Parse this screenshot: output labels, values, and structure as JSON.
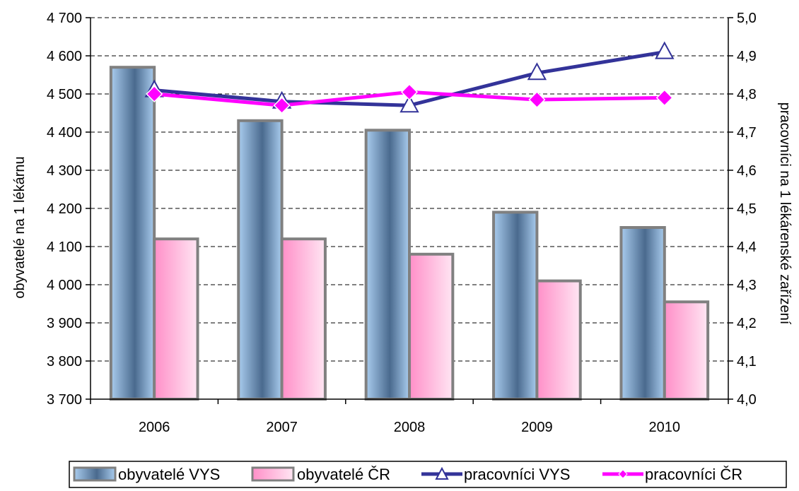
{
  "chart_data": {
    "type": "bar",
    "categories": [
      "2006",
      "2007",
      "2008",
      "2009",
      "2010"
    ],
    "series": [
      {
        "name": "obyvatelé VYS",
        "type": "bar",
        "axis": "left",
        "values": [
          4570,
          4430,
          4405,
          4190,
          4150
        ]
      },
      {
        "name": "obyvatelé ČR",
        "type": "bar",
        "axis": "left",
        "values": [
          4120,
          4120,
          4080,
          4010,
          3955
        ]
      },
      {
        "name": "pracovníci VYS",
        "type": "line",
        "axis": "right",
        "marker": "triangle",
        "values": [
          4.81,
          4.78,
          4.77,
          4.855,
          4.91
        ]
      },
      {
        "name": "pracovníci ČR",
        "type": "line",
        "axis": "right",
        "marker": "diamond",
        "values": [
          4.8,
          4.77,
          4.805,
          4.785,
          4.79
        ]
      }
    ],
    "ylabel": "obyvatelé na 1 lékárnu",
    "y2label": "pracovníci na 1 lékárenské zařízení",
    "ylim": [
      3700,
      4700
    ],
    "y2lim": [
      4.0,
      5.0
    ],
    "yticks": [
      "3 700",
      "3 800",
      "3 900",
      "4 000",
      "4 100",
      "4 200",
      "4 300",
      "4 400",
      "4 500",
      "4 600",
      "4 700"
    ],
    "y2ticks": [
      "4,0",
      "4,1",
      "4,2",
      "4,3",
      "4,4",
      "4,5",
      "4,6",
      "4,7",
      "4,8",
      "4,9",
      "5,0"
    ],
    "grid": true,
    "legend_position": "bottom",
    "colors": {
      "bar_vys": "#6f93bf",
      "bar_cr": "#ffb3d9",
      "bar_border": "#808080",
      "line_vys": "#333399",
      "line_cr": "#ff00ff"
    }
  }
}
